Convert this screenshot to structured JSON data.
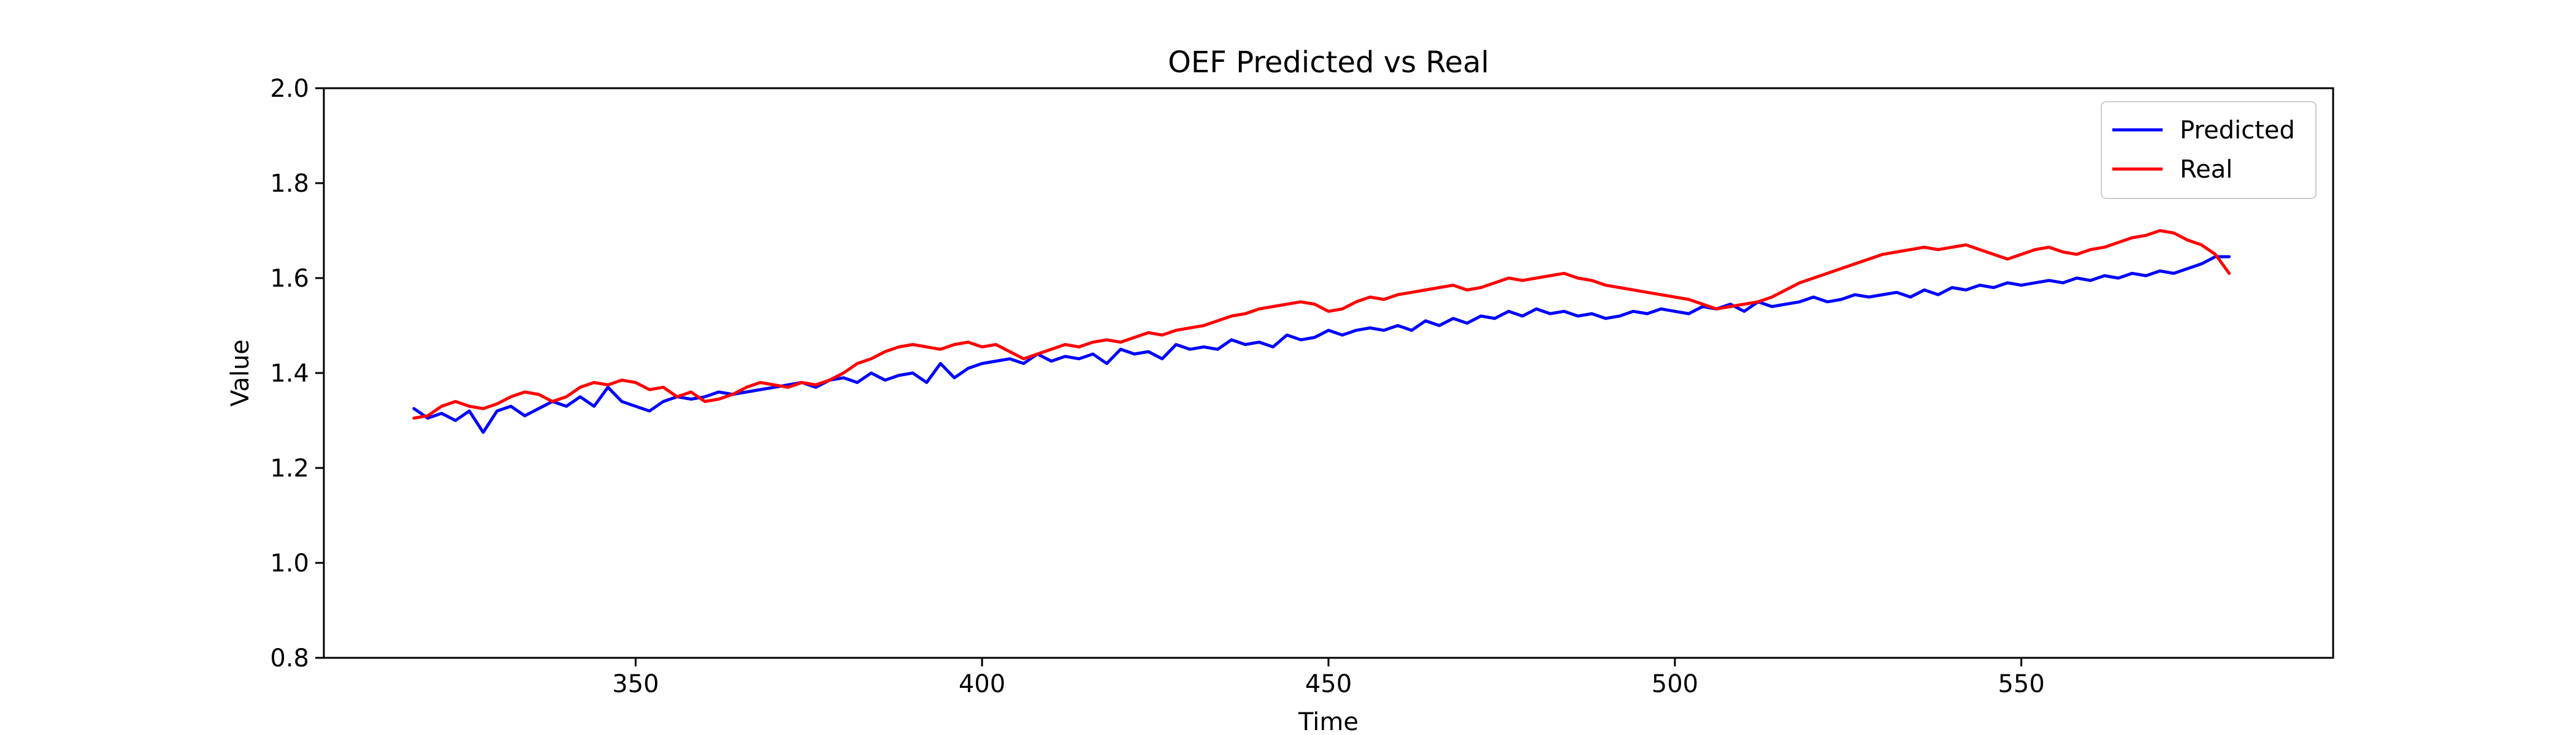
{
  "chart_data": {
    "type": "line",
    "title": "OEF Predicted vs Real",
    "xlabel": "Time",
    "ylabel": "Value",
    "xlim": [
      305,
      595
    ],
    "ylim": [
      0.8,
      2.0
    ],
    "xticks": [
      350,
      400,
      450,
      500,
      550
    ],
    "xtick_labels": [
      "350",
      "400",
      "450",
      "500",
      "550"
    ],
    "yticks": [
      0.8,
      1.0,
      1.2,
      1.4,
      1.6,
      1.8,
      2.0
    ],
    "ytick_labels": [
      "0.8",
      "1.0",
      "1.2",
      "1.4",
      "1.6",
      "1.8",
      "2.0"
    ],
    "grid": false,
    "legend_position": "top-right",
    "x": [
      318,
      320,
      322,
      324,
      326,
      328,
      330,
      332,
      334,
      336,
      338,
      340,
      342,
      344,
      346,
      348,
      350,
      352,
      354,
      356,
      358,
      360,
      362,
      364,
      366,
      368,
      370,
      372,
      374,
      376,
      378,
      380,
      382,
      384,
      386,
      388,
      390,
      392,
      394,
      396,
      398,
      400,
      402,
      404,
      406,
      408,
      410,
      412,
      414,
      416,
      418,
      420,
      422,
      424,
      426,
      428,
      430,
      432,
      434,
      436,
      438,
      440,
      442,
      444,
      446,
      448,
      450,
      452,
      454,
      456,
      458,
      460,
      462,
      464,
      466,
      468,
      470,
      472,
      474,
      476,
      478,
      480,
      482,
      484,
      486,
      488,
      490,
      492,
      494,
      496,
      498,
      500,
      502,
      504,
      506,
      508,
      510,
      512,
      514,
      516,
      518,
      520,
      522,
      524,
      526,
      528,
      530,
      532,
      534,
      536,
      538,
      540,
      542,
      544,
      546,
      548,
      550,
      552,
      554,
      556,
      558,
      560,
      562,
      564,
      566,
      568,
      570,
      572,
      574,
      576,
      578,
      580
    ],
    "series": [
      {
        "name": "Predicted",
        "color": "#0000ff",
        "values": [
          1.325,
          1.305,
          1.315,
          1.3,
          1.32,
          1.275,
          1.32,
          1.33,
          1.31,
          1.325,
          1.34,
          1.33,
          1.35,
          1.33,
          1.37,
          1.34,
          1.33,
          1.32,
          1.34,
          1.35,
          1.345,
          1.35,
          1.36,
          1.355,
          1.36,
          1.365,
          1.37,
          1.375,
          1.38,
          1.37,
          1.385,
          1.39,
          1.38,
          1.4,
          1.385,
          1.395,
          1.4,
          1.38,
          1.42,
          1.39,
          1.41,
          1.42,
          1.425,
          1.43,
          1.42,
          1.44,
          1.425,
          1.435,
          1.43,
          1.44,
          1.42,
          1.45,
          1.44,
          1.445,
          1.43,
          1.46,
          1.45,
          1.455,
          1.45,
          1.47,
          1.46,
          1.465,
          1.455,
          1.48,
          1.47,
          1.475,
          1.49,
          1.48,
          1.49,
          1.495,
          1.49,
          1.5,
          1.49,
          1.51,
          1.5,
          1.515,
          1.505,
          1.52,
          1.515,
          1.53,
          1.52,
          1.535,
          1.525,
          1.53,
          1.52,
          1.525,
          1.515,
          1.52,
          1.53,
          1.525,
          1.535,
          1.53,
          1.525,
          1.54,
          1.535,
          1.545,
          1.53,
          1.55,
          1.54,
          1.545,
          1.55,
          1.56,
          1.55,
          1.555,
          1.565,
          1.56,
          1.565,
          1.57,
          1.56,
          1.575,
          1.565,
          1.58,
          1.575,
          1.585,
          1.58,
          1.59,
          1.585,
          1.59,
          1.595,
          1.59,
          1.6,
          1.595,
          1.605,
          1.6,
          1.61,
          1.605,
          1.615,
          1.61,
          1.62,
          1.63,
          1.645,
          1.645
        ]
      },
      {
        "name": "Real",
        "color": "#ff0000",
        "values": [
          1.305,
          1.31,
          1.33,
          1.34,
          1.33,
          1.325,
          1.335,
          1.35,
          1.36,
          1.355,
          1.34,
          1.35,
          1.37,
          1.38,
          1.375,
          1.385,
          1.38,
          1.365,
          1.37,
          1.35,
          1.36,
          1.34,
          1.345,
          1.355,
          1.37,
          1.38,
          1.375,
          1.37,
          1.38,
          1.375,
          1.385,
          1.4,
          1.42,
          1.43,
          1.445,
          1.455,
          1.46,
          1.455,
          1.45,
          1.46,
          1.465,
          1.455,
          1.46,
          1.445,
          1.43,
          1.44,
          1.45,
          1.46,
          1.455,
          1.465,
          1.47,
          1.465,
          1.475,
          1.485,
          1.48,
          1.49,
          1.495,
          1.5,
          1.51,
          1.52,
          1.525,
          1.535,
          1.54,
          1.545,
          1.55,
          1.545,
          1.53,
          1.535,
          1.55,
          1.56,
          1.555,
          1.565,
          1.57,
          1.575,
          1.58,
          1.585,
          1.575,
          1.58,
          1.59,
          1.6,
          1.595,
          1.6,
          1.605,
          1.61,
          1.6,
          1.595,
          1.585,
          1.58,
          1.575,
          1.57,
          1.565,
          1.56,
          1.555,
          1.545,
          1.535,
          1.54,
          1.545,
          1.55,
          1.56,
          1.575,
          1.59,
          1.6,
          1.61,
          1.62,
          1.63,
          1.64,
          1.65,
          1.655,
          1.66,
          1.665,
          1.66,
          1.665,
          1.67,
          1.66,
          1.65,
          1.64,
          1.65,
          1.66,
          1.665,
          1.655,
          1.65,
          1.66,
          1.665,
          1.675,
          1.685,
          1.69,
          1.7,
          1.695,
          1.68,
          1.67,
          1.65,
          1.61
        ]
      }
    ]
  }
}
